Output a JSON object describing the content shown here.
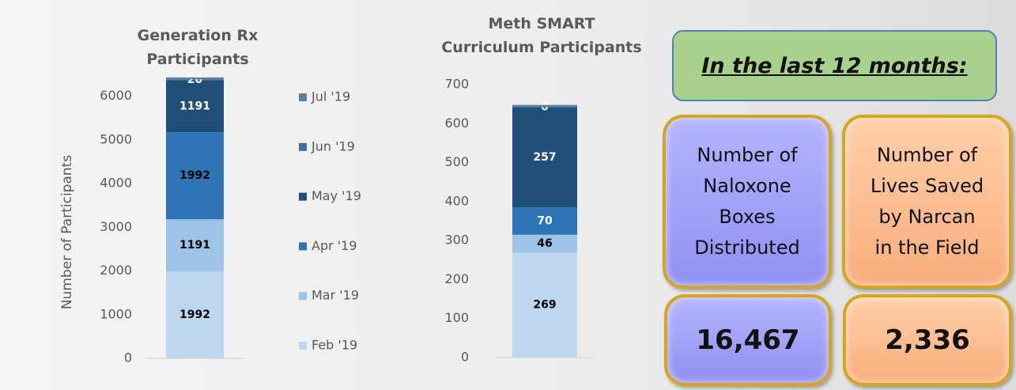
{
  "chart_data": [
    {
      "type": "bar",
      "stacked": true,
      "title": [
        "Generation Rx",
        "Participants"
      ],
      "y_label": "Number of Participants",
      "categories": [
        null
      ],
      "ylim": [
        0,
        6500
      ],
      "yticks": [
        0,
        1000,
        2000,
        3000,
        4000,
        5000,
        6000
      ],
      "legend": "right",
      "series": [
        {
          "name": "Feb '19",
          "color": "#bdd7ee",
          "label_color": "#000000",
          "data_labels": true,
          "values": [
            1992
          ]
        },
        {
          "name": "Mar '19",
          "color": "#9dc3e6",
          "label_color": "#000000",
          "data_labels": true,
          "values": [
            1191
          ]
        },
        {
          "name": "Apr '19",
          "color": "#2e75b6",
          "label_color": "#000000",
          "data_labels": true,
          "values": [
            1992
          ]
        },
        {
          "name": "May '19",
          "color": "#1f4e79",
          "label_color": "#ffffff",
          "data_labels": true,
          "values": [
            1191
          ]
        },
        {
          "name": "Jun '19",
          "color": "#3e6f9e",
          "label_color": "#ffffff",
          "data_labels": true,
          "values": [
            20
          ]
        },
        {
          "name": "Jul '19",
          "color": "#5a7ea6",
          "label_color": "#ffffff",
          "data_labels": false,
          "values": [
            44
          ]
        }
      ]
    },
    {
      "type": "bar",
      "stacked": true,
      "title": [
        "Meth SMART",
        "Curriculum Participants"
      ],
      "categories": [
        null
      ],
      "ylim": [
        0,
        700
      ],
      "yticks": [
        0,
        100,
        200,
        300,
        400,
        500,
        600,
        700
      ],
      "series": [
        {
          "color": "#bdd7ee",
          "label_color": "#000000",
          "data_labels": true,
          "values": [
            269
          ]
        },
        {
          "color": "#9dc3e6",
          "label_color": "#000000",
          "data_labels": true,
          "values": [
            46
          ]
        },
        {
          "color": "#2e75b6",
          "label_color": "#ffffff",
          "data_labels": true,
          "values": [
            70
          ]
        },
        {
          "color": "#1f4e79",
          "label_color": "#ffffff",
          "data_labels": true,
          "values": [
            257
          ]
        },
        {
          "color": "#3e6f9e",
          "label_color": "#ffffff",
          "data_labels": true,
          "values": [
            0
          ]
        },
        {
          "color": "#5a7ea6",
          "label_color": "#ffffff",
          "data_labels": false,
          "values": [
            6
          ]
        }
      ]
    }
  ],
  "panel": {
    "heading": "In the last 12 months:",
    "cards": [
      {
        "label_lines": [
          "Number of",
          "Naloxone",
          "Boxes",
          "Distributed"
        ],
        "value": "16,467"
      },
      {
        "label_lines": [
          "Number of",
          "Lives Saved",
          "by Narcan",
          "in the Field"
        ],
        "value": "2,336"
      }
    ]
  }
}
